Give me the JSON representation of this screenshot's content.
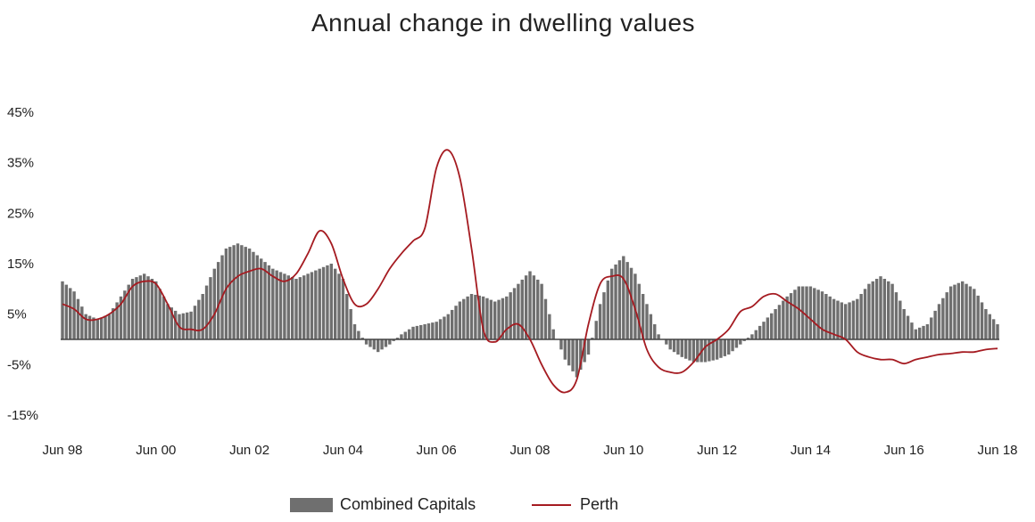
{
  "chart_data": {
    "type": "bar+line",
    "title": "Annual change in dwelling values",
    "xlabel": "",
    "ylabel": "",
    "ylim": [
      -0.15,
      0.45
    ],
    "y_ticks": [
      "45%",
      "35%",
      "25%",
      "15%",
      "5%",
      "-5%",
      "-15%"
    ],
    "y_tick_values": [
      0.45,
      0.35,
      0.25,
      0.15,
      0.05,
      -0.05,
      -0.15
    ],
    "x_ticks": [
      "Jun 98",
      "Jun 00",
      "Jun 02",
      "Jun 04",
      "Jun 06",
      "Jun 08",
      "Jun 10",
      "Jun 12",
      "Jun 14",
      "Jun 16",
      "Jun 18"
    ],
    "x_tick_values": [
      1998.5,
      2000.5,
      2002.5,
      2004.5,
      2006.5,
      2008.5,
      2010.5,
      2012.5,
      2014.5,
      2016.5,
      2018.5
    ],
    "grid": false,
    "legend_position": "bottom",
    "series": [
      {
        "name": "Combined Capitals",
        "kind": "bar",
        "color": "#6f6f6f",
        "points": [
          [
            1998.5,
            0.115
          ],
          [
            1998.75,
            0.095
          ],
          [
            1999.0,
            0.05
          ],
          [
            1999.25,
            0.04
          ],
          [
            1999.5,
            0.05
          ],
          [
            1999.75,
            0.085
          ],
          [
            2000.0,
            0.12
          ],
          [
            2000.25,
            0.13
          ],
          [
            2000.5,
            0.115
          ],
          [
            2000.75,
            0.07
          ],
          [
            2001.0,
            0.05
          ],
          [
            2001.25,
            0.055
          ],
          [
            2001.5,
            0.09
          ],
          [
            2001.75,
            0.14
          ],
          [
            2002.0,
            0.18
          ],
          [
            2002.25,
            0.19
          ],
          [
            2002.5,
            0.18
          ],
          [
            2002.75,
            0.16
          ],
          [
            2003.0,
            0.14
          ],
          [
            2003.25,
            0.13
          ],
          [
            2003.5,
            0.12
          ],
          [
            2003.75,
            0.13
          ],
          [
            2004.0,
            0.14
          ],
          [
            2004.25,
            0.15
          ],
          [
            2004.5,
            0.12
          ],
          [
            2004.75,
            0.03
          ],
          [
            2005.0,
            -0.01
          ],
          [
            2005.25,
            -0.025
          ],
          [
            2005.5,
            -0.01
          ],
          [
            2005.75,
            0.01
          ],
          [
            2006.0,
            0.025
          ],
          [
            2006.5,
            0.035
          ],
          [
            2006.75,
            0.05
          ],
          [
            2007.0,
            0.075
          ],
          [
            2007.25,
            0.09
          ],
          [
            2007.5,
            0.085
          ],
          [
            2007.75,
            0.075
          ],
          [
            2008.0,
            0.085
          ],
          [
            2008.25,
            0.11
          ],
          [
            2008.5,
            0.135
          ],
          [
            2008.75,
            0.11
          ],
          [
            2009.0,
            0.02
          ],
          [
            2009.25,
            -0.04
          ],
          [
            2009.5,
            -0.075
          ],
          [
            2009.75,
            -0.03
          ],
          [
            2010.0,
            0.07
          ],
          [
            2010.25,
            0.14
          ],
          [
            2010.5,
            0.165
          ],
          [
            2010.75,
            0.13
          ],
          [
            2011.0,
            0.07
          ],
          [
            2011.25,
            0.01
          ],
          [
            2011.5,
            -0.02
          ],
          [
            2011.75,
            -0.035
          ],
          [
            2012.0,
            -0.045
          ],
          [
            2012.25,
            -0.045
          ],
          [
            2012.5,
            -0.04
          ],
          [
            2012.75,
            -0.03
          ],
          [
            2013.0,
            -0.01
          ],
          [
            2013.25,
            0.01
          ],
          [
            2013.5,
            0.035
          ],
          [
            2013.75,
            0.06
          ],
          [
            2014.0,
            0.085
          ],
          [
            2014.25,
            0.105
          ],
          [
            2014.5,
            0.105
          ],
          [
            2014.75,
            0.095
          ],
          [
            2015.0,
            0.08
          ],
          [
            2015.25,
            0.07
          ],
          [
            2015.5,
            0.08
          ],
          [
            2015.75,
            0.11
          ],
          [
            2016.0,
            0.125
          ],
          [
            2016.25,
            0.11
          ],
          [
            2016.5,
            0.06
          ],
          [
            2016.75,
            0.02
          ],
          [
            2017.0,
            0.03
          ],
          [
            2017.25,
            0.07
          ],
          [
            2017.5,
            0.105
          ],
          [
            2017.75,
            0.115
          ],
          [
            2018.0,
            0.1
          ],
          [
            2018.25,
            0.06
          ],
          [
            2018.5,
            0.03
          ]
        ]
      },
      {
        "name": "Perth",
        "kind": "line",
        "color": "#a51b21",
        "points": [
          [
            1998.5,
            0.07
          ],
          [
            1998.75,
            0.06
          ],
          [
            1999.0,
            0.04
          ],
          [
            1999.25,
            0.04
          ],
          [
            1999.5,
            0.05
          ],
          [
            1999.75,
            0.07
          ],
          [
            2000.0,
            0.105
          ],
          [
            2000.25,
            0.115
          ],
          [
            2000.5,
            0.11
          ],
          [
            2000.75,
            0.07
          ],
          [
            2001.0,
            0.025
          ],
          [
            2001.25,
            0.02
          ],
          [
            2001.5,
            0.02
          ],
          [
            2001.75,
            0.05
          ],
          [
            2002.0,
            0.1
          ],
          [
            2002.25,
            0.125
          ],
          [
            2002.5,
            0.135
          ],
          [
            2002.75,
            0.14
          ],
          [
            2003.0,
            0.125
          ],
          [
            2003.25,
            0.115
          ],
          [
            2003.5,
            0.13
          ],
          [
            2003.75,
            0.17
          ],
          [
            2004.0,
            0.215
          ],
          [
            2004.25,
            0.19
          ],
          [
            2004.5,
            0.12
          ],
          [
            2004.75,
            0.07
          ],
          [
            2005.0,
            0.07
          ],
          [
            2005.25,
            0.1
          ],
          [
            2005.5,
            0.14
          ],
          [
            2005.75,
            0.17
          ],
          [
            2006.0,
            0.195
          ],
          [
            2006.25,
            0.22
          ],
          [
            2006.5,
            0.34
          ],
          [
            2006.75,
            0.375
          ],
          [
            2007.0,
            0.32
          ],
          [
            2007.25,
            0.18
          ],
          [
            2007.5,
            0.02
          ],
          [
            2007.75,
            -0.005
          ],
          [
            2008.0,
            0.02
          ],
          [
            2008.25,
            0.03
          ],
          [
            2008.5,
            0.0
          ],
          [
            2008.75,
            -0.05
          ],
          [
            2009.0,
            -0.09
          ],
          [
            2009.25,
            -0.105
          ],
          [
            2009.5,
            -0.08
          ],
          [
            2009.75,
            0.03
          ],
          [
            2010.0,
            0.11
          ],
          [
            2010.25,
            0.125
          ],
          [
            2010.5,
            0.12
          ],
          [
            2010.75,
            0.06
          ],
          [
            2011.0,
            -0.02
          ],
          [
            2011.25,
            -0.055
          ],
          [
            2011.5,
            -0.065
          ],
          [
            2011.75,
            -0.065
          ],
          [
            2012.0,
            -0.045
          ],
          [
            2012.25,
            -0.015
          ],
          [
            2012.5,
            0.0
          ],
          [
            2012.75,
            0.02
          ],
          [
            2013.0,
            0.055
          ],
          [
            2013.25,
            0.065
          ],
          [
            2013.5,
            0.085
          ],
          [
            2013.75,
            0.09
          ],
          [
            2014.0,
            0.075
          ],
          [
            2014.25,
            0.06
          ],
          [
            2014.5,
            0.04
          ],
          [
            2014.75,
            0.02
          ],
          [
            2015.0,
            0.01
          ],
          [
            2015.25,
            0.0
          ],
          [
            2015.5,
            -0.025
          ],
          [
            2015.75,
            -0.035
          ],
          [
            2016.0,
            -0.04
          ],
          [
            2016.25,
            -0.04
          ],
          [
            2016.5,
            -0.048
          ],
          [
            2016.75,
            -0.04
          ],
          [
            2017.0,
            -0.035
          ],
          [
            2017.25,
            -0.03
          ],
          [
            2017.5,
            -0.028
          ],
          [
            2017.75,
            -0.025
          ],
          [
            2018.0,
            -0.025
          ],
          [
            2018.25,
            -0.02
          ],
          [
            2018.5,
            -0.018
          ]
        ]
      }
    ]
  }
}
